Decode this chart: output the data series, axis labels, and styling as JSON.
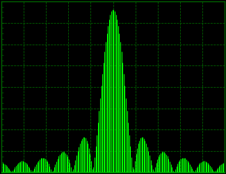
{
  "background_color": "#000000",
  "grid_color": "#006600",
  "spectrum_color": "#00ff00",
  "baseline_color": "#00cc00",
  "xlim": [
    -1.0,
    1.0
  ],
  "ylim": [
    0.0,
    1.05
  ],
  "grid_xticks": 10,
  "grid_yticks": 8,
  "n_bars": 200,
  "sinc_scale": 5.5,
  "figsize": [
    3.25,
    2.5
  ],
  "dpi": 100,
  "spine_linewidth": 1.0,
  "grid_linewidth": 0.6,
  "bar_linewidth": 0.8
}
